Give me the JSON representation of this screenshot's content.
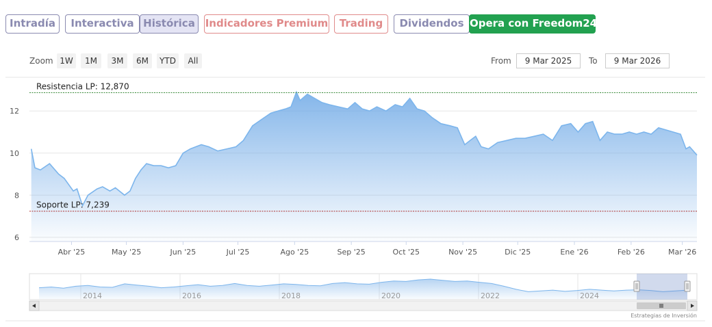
{
  "tabs": [
    {
      "label": "Intradía",
      "color": "#8a8ab0"
    },
    {
      "label": "Interactiva",
      "color": "#8a8ab0"
    },
    {
      "label": "Histórica",
      "color": "#8a8ab0",
      "active": true
    },
    {
      "label": "Indicadores Premium",
      "color": "#e08a8a"
    },
    {
      "label": "Trading",
      "color": "#e08a8a"
    },
    {
      "label": "Dividendos",
      "color": "#8a8ab0"
    },
    {
      "label": "Opera con Freedom24",
      "color": "#22a150",
      "cta": true
    }
  ],
  "zoom": {
    "label": "Zoom",
    "buttons": [
      "1W",
      "1M",
      "3M",
      "6M",
      "YTD",
      "All"
    ]
  },
  "range": {
    "from_label": "From",
    "from": "9 Mar 2025",
    "to_label": "To",
    "to": "9 Mar 2026"
  },
  "chart_data": {
    "type": "area",
    "title": "",
    "xlabel": "",
    "ylabel": "",
    "ylim": [
      5.8,
      13.6
    ],
    "y_ticks": [
      6,
      8,
      10,
      12
    ],
    "x_ticks": [
      "Abr '25",
      "May '25",
      "Jun '25",
      "Jul '25",
      "Ago '25",
      "Sep '25",
      "Oct '25",
      "Nov '25",
      "Dic '25",
      "Ene '26",
      "Feb '26",
      "Mar '26"
    ],
    "grid": true,
    "color": "#7cb5ec",
    "series": [
      {
        "x": [
          "2025-03-10",
          "2025-03-12",
          "2025-03-15",
          "2025-03-20",
          "2025-03-25",
          "2025-03-28",
          "2025-04-02",
          "2025-04-04",
          "2025-04-07",
          "2025-04-10",
          "2025-04-15",
          "2025-04-18",
          "2025-04-22",
          "2025-04-25",
          "2025-04-30",
          "2025-05-03",
          "2025-05-06",
          "2025-05-09",
          "2025-05-12",
          "2025-05-16",
          "2025-05-20",
          "2025-05-24",
          "2025-05-28",
          "2025-06-01",
          "2025-06-05",
          "2025-06-08",
          "2025-06-11",
          "2025-06-15",
          "2025-06-20",
          "2025-06-25",
          "2025-06-30",
          "2025-07-04",
          "2025-07-09",
          "2025-07-14",
          "2025-07-19",
          "2025-07-23",
          "2025-07-27",
          "2025-07-30",
          "2025-08-02",
          "2025-08-04",
          "2025-08-08",
          "2025-08-12",
          "2025-08-16",
          "2025-08-20",
          "2025-08-25",
          "2025-08-30",
          "2025-09-03",
          "2025-09-07",
          "2025-09-11",
          "2025-09-15",
          "2025-09-20",
          "2025-09-25",
          "2025-09-29",
          "2025-10-03",
          "2025-10-07",
          "2025-10-11",
          "2025-10-15",
          "2025-10-20",
          "2025-10-25",
          "2025-10-29",
          "2025-11-02",
          "2025-11-05",
          "2025-11-08",
          "2025-11-11",
          "2025-11-15",
          "2025-11-20",
          "2025-11-25",
          "2025-11-30",
          "2025-12-05",
          "2025-12-10",
          "2025-12-15",
          "2025-12-20",
          "2025-12-25",
          "2025-12-30",
          "2026-01-03",
          "2026-01-07",
          "2026-01-11",
          "2026-01-15",
          "2026-01-19",
          "2026-01-23",
          "2026-01-27",
          "2026-01-31",
          "2026-02-04",
          "2026-02-08",
          "2026-02-12",
          "2026-02-16",
          "2026-02-20",
          "2026-02-24",
          "2026-02-28",
          "2026-03-03",
          "2026-03-05",
          "2026-03-07",
          "2026-03-09"
        ],
        "values": [
          10.2,
          9.3,
          9.2,
          9.5,
          9.0,
          8.8,
          8.2,
          8.3,
          7.5,
          8.0,
          8.3,
          8.4,
          8.2,
          8.35,
          8.0,
          8.2,
          8.8,
          9.2,
          9.5,
          9.4,
          9.4,
          9.3,
          9.4,
          10.0,
          10.2,
          10.3,
          10.4,
          10.3,
          10.1,
          10.2,
          10.3,
          10.6,
          11.3,
          11.6,
          11.9,
          12.0,
          12.1,
          12.2,
          12.9,
          12.5,
          12.8,
          12.6,
          12.4,
          12.3,
          12.2,
          12.1,
          12.4,
          12.1,
          12.0,
          12.2,
          12.0,
          12.3,
          12.2,
          12.6,
          12.1,
          12.0,
          11.7,
          11.4,
          11.3,
          11.2,
          10.4,
          10.6,
          10.8,
          10.3,
          10.2,
          10.5,
          10.6,
          10.7,
          10.7,
          10.8,
          10.9,
          10.6,
          11.3,
          11.4,
          11.0,
          11.4,
          11.5,
          10.6,
          11.0,
          10.9,
          10.9,
          11.0,
          10.9,
          11.0,
          10.9,
          11.2,
          11.1,
          11.0,
          10.9,
          10.2,
          10.3,
          10.1,
          9.9
        ]
      }
    ],
    "annotations": [
      {
        "label": "Resistencia LP: 12,870",
        "value": 12.87,
        "color": "#3a8a3a"
      },
      {
        "label": "Soporte LP: 7,239",
        "value": 7.239,
        "color": "#b03030"
      }
    ],
    "navigator": {
      "x_ticks": [
        "2014",
        "2016",
        "2018",
        "2020",
        "2022",
        "2024"
      ],
      "values": [
        0.45,
        0.5,
        0.42,
        0.55,
        0.6,
        0.5,
        0.48,
        0.7,
        0.62,
        0.55,
        0.45,
        0.5,
        0.58,
        0.65,
        0.55,
        0.6,
        0.72,
        0.6,
        0.55,
        0.62,
        0.7,
        0.66,
        0.6,
        0.58,
        0.72,
        0.78,
        0.7,
        0.68,
        0.8,
        0.88,
        0.85,
        0.95,
        1.0,
        0.92,
        0.85,
        0.88,
        0.8,
        0.72,
        0.55,
        0.35,
        0.2,
        0.25,
        0.3,
        0.22,
        0.28,
        0.35,
        0.3,
        0.25,
        0.3,
        0.32,
        0.28,
        0.2,
        0.25,
        0.3
      ]
    },
    "credit": "Estrategias de Inversión"
  }
}
